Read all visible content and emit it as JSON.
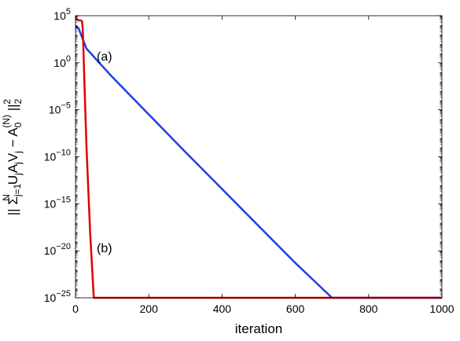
{
  "chart_data": {
    "type": "line",
    "xlabel": "iteration",
    "ylabel": "|| Σ_{j=1}^{N} U_j A_j V_j − A_0^{(N)} ||_2^2",
    "ylabel_parts": {
      "open": "|| Σ",
      "sub_sum": "j=1",
      "sup_sum": "N",
      "u": "U",
      "sub_u": "j",
      "a": "A",
      "sub_a": "j",
      "v": "V",
      "sub_v": "j",
      "minus": " − A",
      "sub_a0": "0",
      "sup_a0": "(N)",
      "close": " ||",
      "sub_norm": "2",
      "sup_norm": "2"
    },
    "xlim": [
      0,
      1000
    ],
    "ylim_exponent": [
      -25,
      5
    ],
    "yscale": "log",
    "x_ticks": [
      "0",
      "200",
      "400",
      "600",
      "800",
      "1000"
    ],
    "y_tick_base": "10",
    "y_tick_exponents": [
      "5",
      "0",
      "−5",
      "−10",
      "−15",
      "−20",
      "−25"
    ],
    "grid": false,
    "legend": "none",
    "annotations": [
      "(a)",
      "(b)"
    ],
    "series": [
      {
        "color": "#1f3fe0",
        "x": [
          0,
          8,
          15,
          30,
          60,
          100,
          150,
          300,
          450,
          600,
          700,
          750,
          770,
          780,
          800,
          900,
          1000
        ],
        "log10_y": [
          3.9,
          3.7,
          3.0,
          1.5,
          0.2,
          -1.5,
          -3.5,
          -9.5,
          -15.4,
          -21.3,
          -25.3,
          -27.2,
          -27.9,
          -28.1,
          -28.2,
          -28.2,
          -28.2
        ]
      },
      {
        "color": "#e00000",
        "x": [
          0,
          10,
          15,
          18,
          20,
          25,
          30,
          40,
          50,
          55,
          60,
          80,
          100,
          200,
          500,
          800,
          1000
        ],
        "log10_y": [
          4.7,
          4.5,
          4.5,
          4.4,
          3.5,
          -3.0,
          -9.0,
          -18.0,
          -25.0,
          -26.2,
          -26.5,
          -26.6,
          -26.6,
          -26.6,
          -26.5,
          -26.5,
          -26.5
        ]
      }
    ]
  }
}
